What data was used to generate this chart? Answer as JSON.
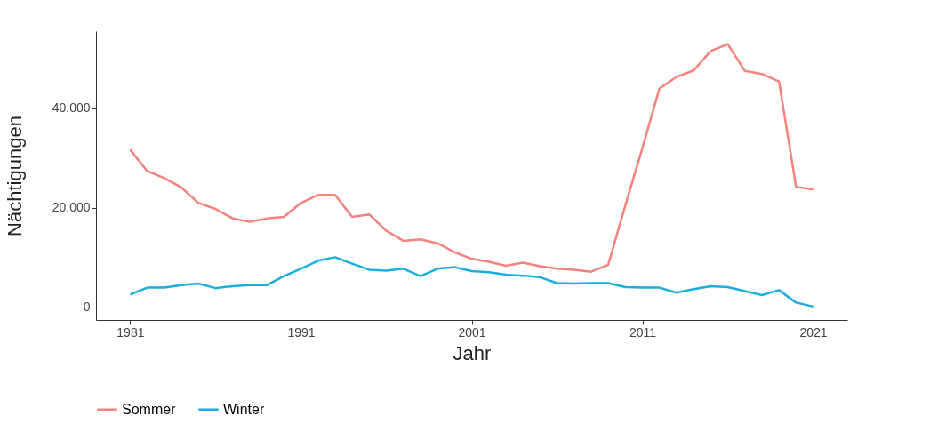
{
  "chart_data": {
    "type": "line",
    "xlabel": "Jahr",
    "ylabel": "Nächtigungen",
    "x": [
      1981,
      1982,
      1983,
      1984,
      1985,
      1986,
      1987,
      1988,
      1989,
      1990,
      1991,
      1992,
      1993,
      1994,
      1995,
      1996,
      1997,
      1998,
      1999,
      2000,
      2001,
      2002,
      2003,
      2004,
      2005,
      2006,
      2007,
      2008,
      2009,
      2010,
      2011,
      2012,
      2013,
      2014,
      2015,
      2016,
      2017,
      2018,
      2019,
      2020,
      2021
    ],
    "series": [
      {
        "name": "Sommer",
        "color": "#f4837d",
        "values": [
          31700,
          27400,
          26000,
          24100,
          21000,
          19800,
          17900,
          17200,
          17900,
          18200,
          21000,
          22600,
          22600,
          18200,
          18700,
          15400,
          13400,
          13700,
          12900,
          11100,
          9800,
          9200,
          8400,
          9000,
          8300,
          7800,
          7600,
          7200,
          8600,
          20500,
          32000,
          44000,
          46300,
          47600,
          51500,
          52900,
          47500,
          46900,
          45400,
          24200,
          23700
        ]
      },
      {
        "name": "Winter",
        "color": "#1aaedc",
        "values": [
          2600,
          4000,
          4000,
          4500,
          4800,
          3900,
          4300,
          4500,
          4500,
          6300,
          7800,
          9400,
          10100,
          8800,
          7600,
          7400,
          7800,
          6300,
          7800,
          8100,
          7300,
          7100,
          6600,
          6400,
          6100,
          4900,
          4800,
          4900,
          4900,
          4100,
          4000,
          4000,
          3000,
          3700,
          4300,
          4100,
          3300,
          2500,
          3500,
          1000,
          200
        ]
      }
    ],
    "xlim": [
      1979,
      2023
    ],
    "xticks": [
      1981,
      1991,
      2001,
      2011,
      2021
    ],
    "ylim": [
      -2500,
      55500
    ],
    "yticks": [
      {
        "value": 0,
        "label": "0"
      },
      {
        "value": 20000,
        "label": "20.000"
      },
      {
        "value": 40000,
        "label": "40.000"
      }
    ],
    "grid": false,
    "legend": "bottom",
    "line_style": "solid"
  }
}
